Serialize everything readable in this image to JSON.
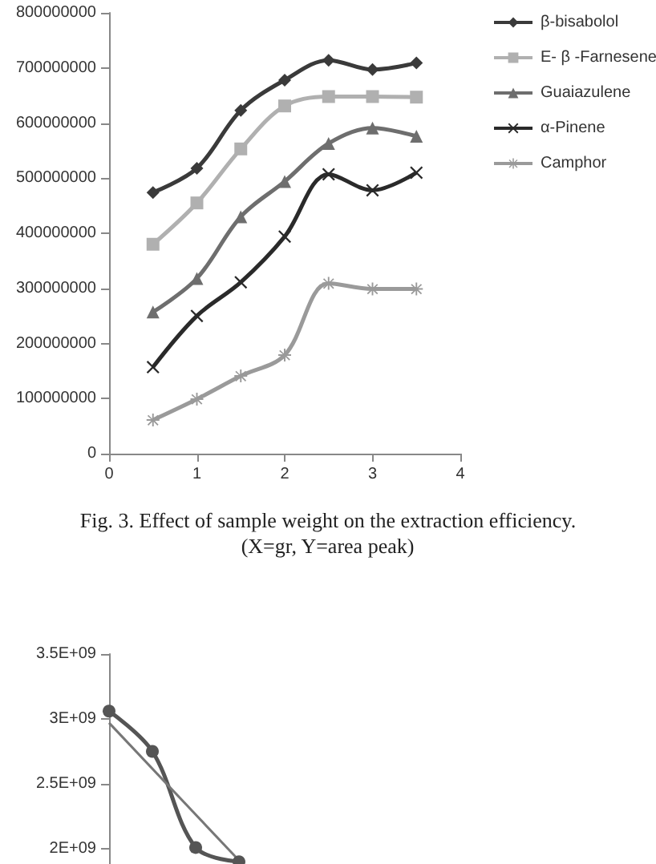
{
  "chart_data": [
    {
      "type": "line",
      "annotations": [
        "Fig. 3. Effect of sample weight on the extraction efficiency.",
        "(X=gr, Y=area peak)"
      ],
      "x": [
        0.5,
        1,
        1.5,
        2,
        2.5,
        3,
        3.5
      ],
      "series": [
        {
          "name": "β-bisabolol",
          "color": "#3a3a3a",
          "marker": "diamond",
          "values": [
            474000000,
            518000000,
            623000000,
            678000000,
            714000000,
            697000000,
            709000000
          ]
        },
        {
          "name": "E- β -Farnesene",
          "color": "#b0b0b0",
          "marker": "square",
          "values": [
            380000000,
            455000000,
            553000000,
            631000000,
            648000000,
            648000000,
            647000000
          ]
        },
        {
          "name": "Guaiazulene",
          "color": "#6e6e6e",
          "marker": "triangle",
          "values": [
            257000000,
            318000000,
            430000000,
            494000000,
            563000000,
            591000000,
            576000000
          ]
        },
        {
          "name": "α-Pinene",
          "color": "#2a2a2a",
          "marker": "cross",
          "values": [
            157000000,
            250000000,
            311000000,
            394000000,
            507000000,
            478000000,
            510000000
          ]
        },
        {
          "name": "Camphor",
          "color": "#9a9a9a",
          "marker": "star",
          "values": [
            61000000,
            99000000,
            141000000,
            179000000,
            309000000,
            299000000,
            299000000
          ]
        }
      ],
      "xlim": [
        0,
        4
      ],
      "xticks": [
        0,
        1,
        2,
        3,
        4
      ],
      "ylim": [
        0,
        800000000
      ],
      "yticks": [
        0,
        100000000,
        200000000,
        300000000,
        400000000,
        500000000,
        600000000,
        700000000,
        800000000
      ],
      "grid": false,
      "legend": "right"
    },
    {
      "type": "line",
      "categories": [
        null,
        null,
        null,
        null
      ],
      "series": [
        {
          "color": "#555555",
          "marker": "circle",
          "values": [
            3060000000,
            2750000000,
            2010000000,
            1900000000
          ]
        },
        {
          "color": "#777777",
          "marker": "none",
          "values": [
            2970000000,
            null,
            null,
            1910000000
          ]
        }
      ],
      "ylim": [
        1500000000,
        3500000000
      ],
      "yticks": [
        {
          "value": 2000000000,
          "label": "2E+09"
        },
        {
          "value": 2500000000,
          "label": "2.5E+09"
        },
        {
          "value": 3000000000,
          "label": "3E+09"
        },
        {
          "value": 3500000000,
          "label": "3.5E+09"
        }
      ],
      "grid": false,
      "legend": false
    }
  ]
}
